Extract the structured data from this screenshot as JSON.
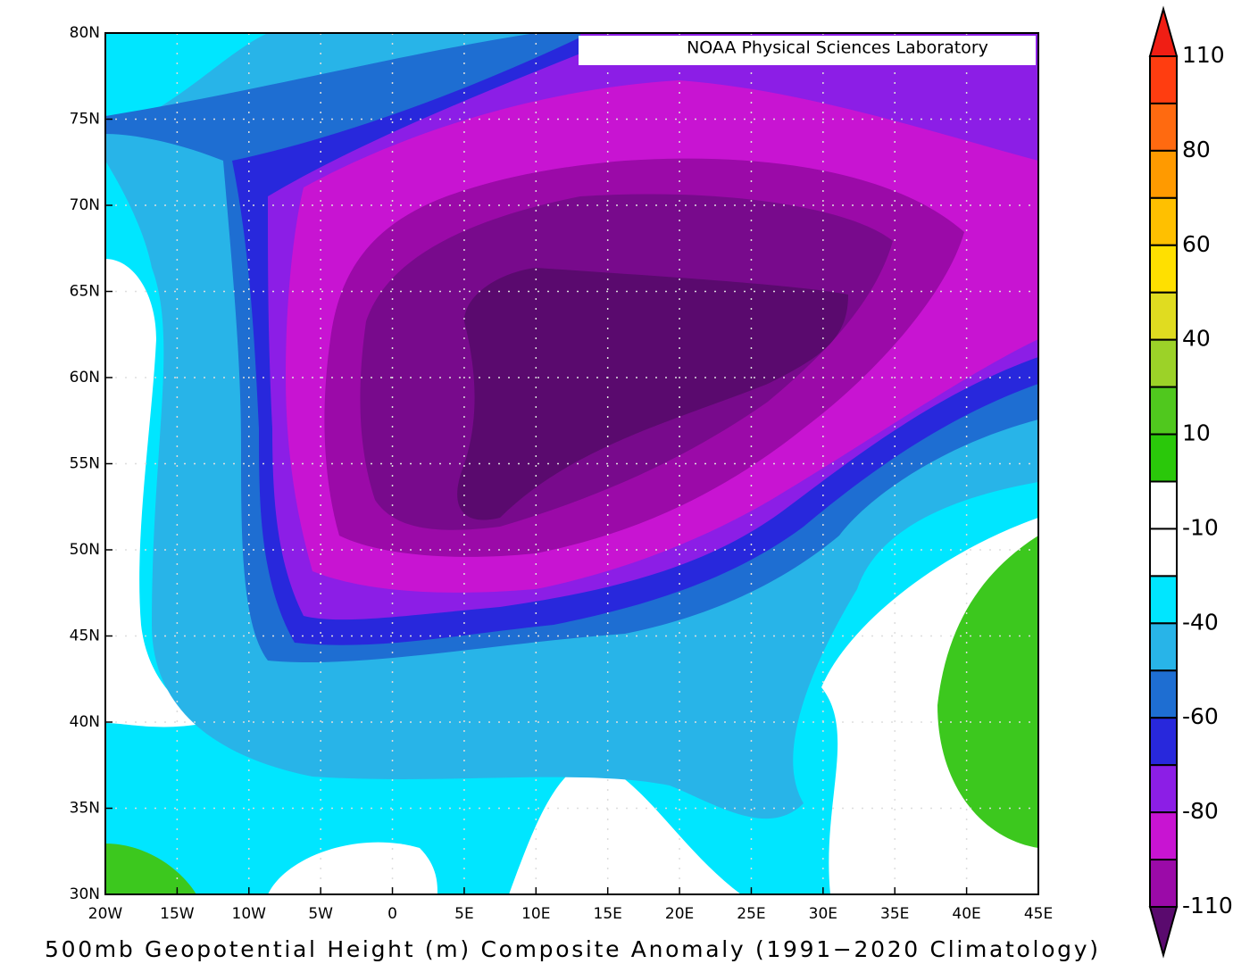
{
  "map": {
    "title": "500mb Geopotential Height (m) Composite Anomaly (1991−2020 Climatology)",
    "credit": "NOAA Physical Sciences Laboratory",
    "lat_labels": [
      "80N",
      "75N",
      "70N",
      "65N",
      "60N",
      "55N",
      "50N",
      "45N",
      "40N",
      "35N",
      "30N"
    ],
    "lon_labels": [
      "20W",
      "15W",
      "10W",
      "5W",
      "0",
      "5E",
      "10E",
      "15E",
      "20E",
      "25E",
      "30E",
      "35E",
      "40E",
      "45E"
    ],
    "colorbar_labels": [
      110,
      80,
      60,
      40,
      10,
      -10,
      -40,
      -60,
      -80,
      -110
    ]
  }
}
